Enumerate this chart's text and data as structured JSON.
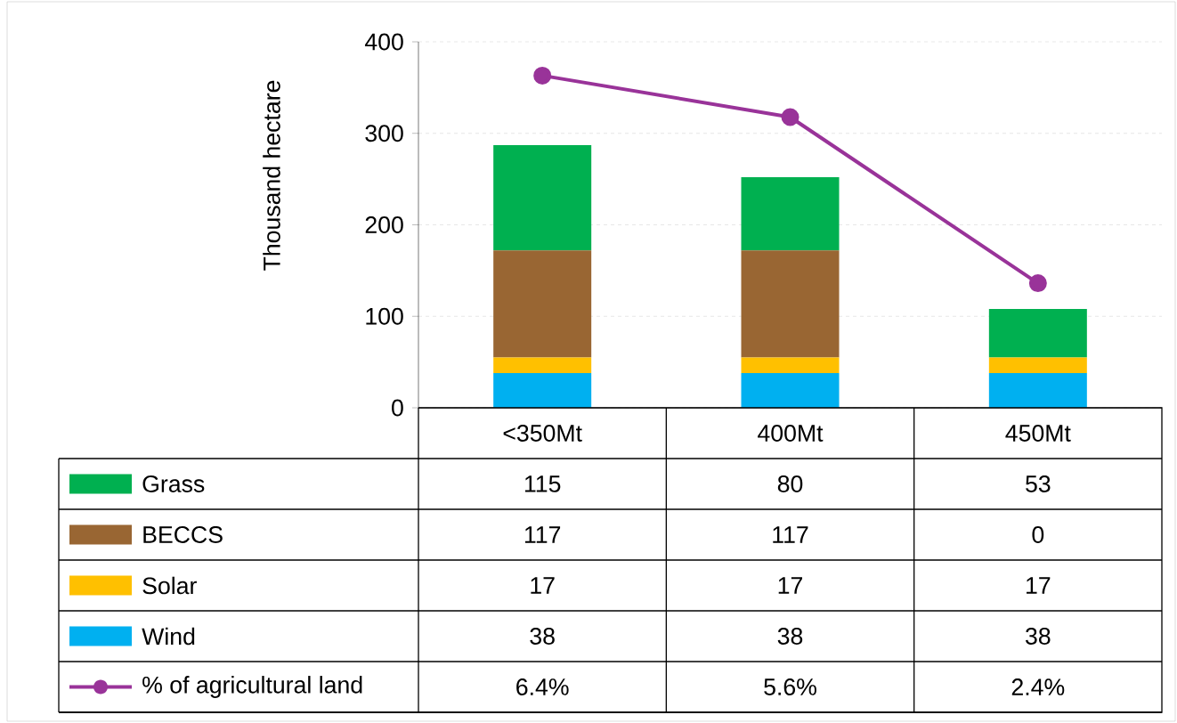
{
  "chart_data": {
    "type": "bar",
    "stacked": true,
    "ylabel": "Thousand hectare",
    "categories": [
      "<350Mt",
      "400Mt",
      "450Mt"
    ],
    "ylim": [
      0,
      400
    ],
    "yticks": [
      0,
      100,
      200,
      300,
      400
    ],
    "y2lim": [
      0,
      7.05
    ],
    "grid": "y",
    "legend": "bottom",
    "series": [
      {
        "name": "Wind",
        "color": "#00b0f0",
        "values": [
          38,
          38,
          38
        ],
        "value_labels": [
          "38",
          "38",
          "38"
        ]
      },
      {
        "name": "Solar",
        "color": "#ffc000",
        "values": [
          17,
          17,
          17
        ],
        "value_labels": [
          "17",
          "17",
          "17"
        ]
      },
      {
        "name": "BECCS",
        "color": "#996633",
        "values": [
          117,
          117,
          0
        ],
        "value_labels": [
          "117",
          "117",
          "0"
        ]
      },
      {
        "name": "Grass",
        "color": "#00b050",
        "values": [
          115,
          80,
          53
        ],
        "value_labels": [
          "115",
          "80",
          "53"
        ]
      },
      {
        "name": "% of agricultural land",
        "type": "line",
        "axis": "y2",
        "marker": "circle",
        "line_style": "solid",
        "color": "#993399",
        "values": [
          6.4,
          5.6,
          2.4
        ],
        "value_labels": [
          "6.4%",
          "5.6%",
          "2.4%"
        ]
      }
    ]
  }
}
